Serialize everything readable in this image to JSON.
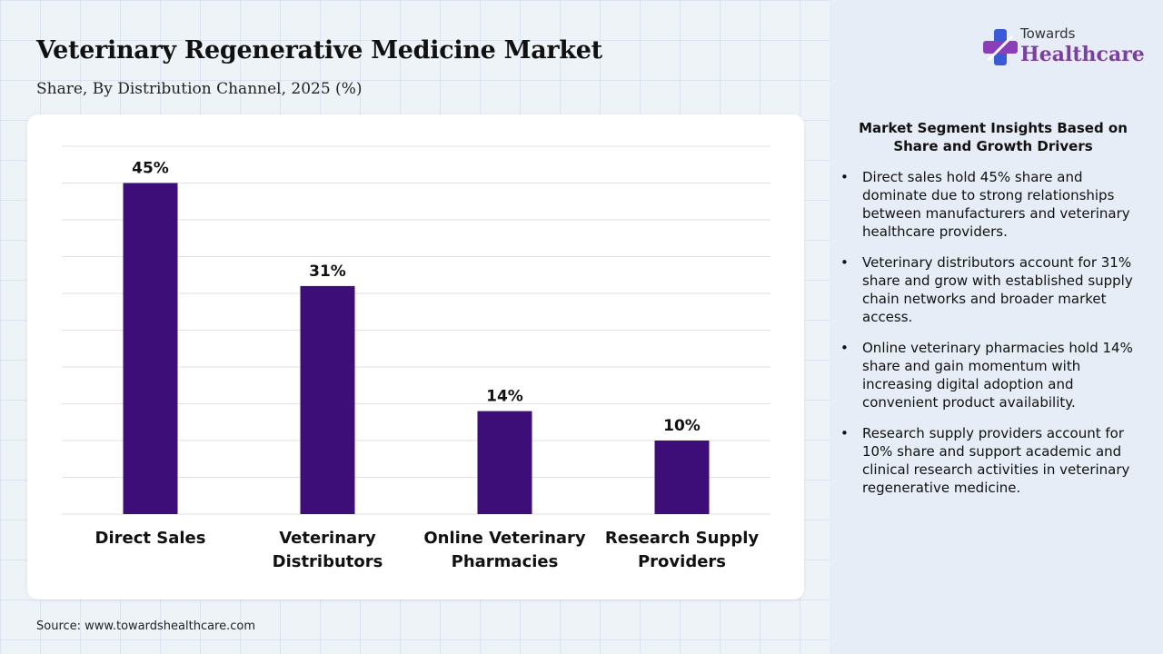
{
  "header": {
    "title": "Veterinary Regenerative Medicine Market",
    "subtitle": "Share, By Distribution Channel, 2025 (%)"
  },
  "source": "Source: www.towardshealthcare.com",
  "logo": {
    "line1": "Towards",
    "line2": "Healthcare",
    "icon": "cross-plus-icon"
  },
  "insights": {
    "title": "Market Segment Insights Based on Share and Growth Drivers",
    "bullets": [
      "Direct sales hold 45% share and dominate due to strong relationships between manufacturers and veterinary healthcare providers.",
      "Veterinary distributors account for 31% share and grow with established supply chain networks and broader market access.",
      "Online veterinary pharmacies hold 14% share and gain momentum with increasing digital adoption and convenient product availability.",
      "Research supply providers account for 10% share and support academic and clinical research activities in veterinary regenerative medicine."
    ]
  },
  "chart_data": {
    "type": "bar",
    "categories": [
      [
        "Direct Sales"
      ],
      [
        "Veterinary",
        "Distributors"
      ],
      [
        "Online Veterinary",
        "Pharmacies"
      ],
      [
        "Research Supply",
        "Providers"
      ]
    ],
    "values": [
      45,
      31,
      14,
      10
    ],
    "value_labels": [
      "45%",
      "31%",
      "14%",
      "10%"
    ],
    "ylim": [
      0,
      50
    ],
    "grid": true,
    "legend": "none",
    "colors": {
      "bar": "#3d0d78",
      "grid": "#e2e2e2"
    }
  }
}
